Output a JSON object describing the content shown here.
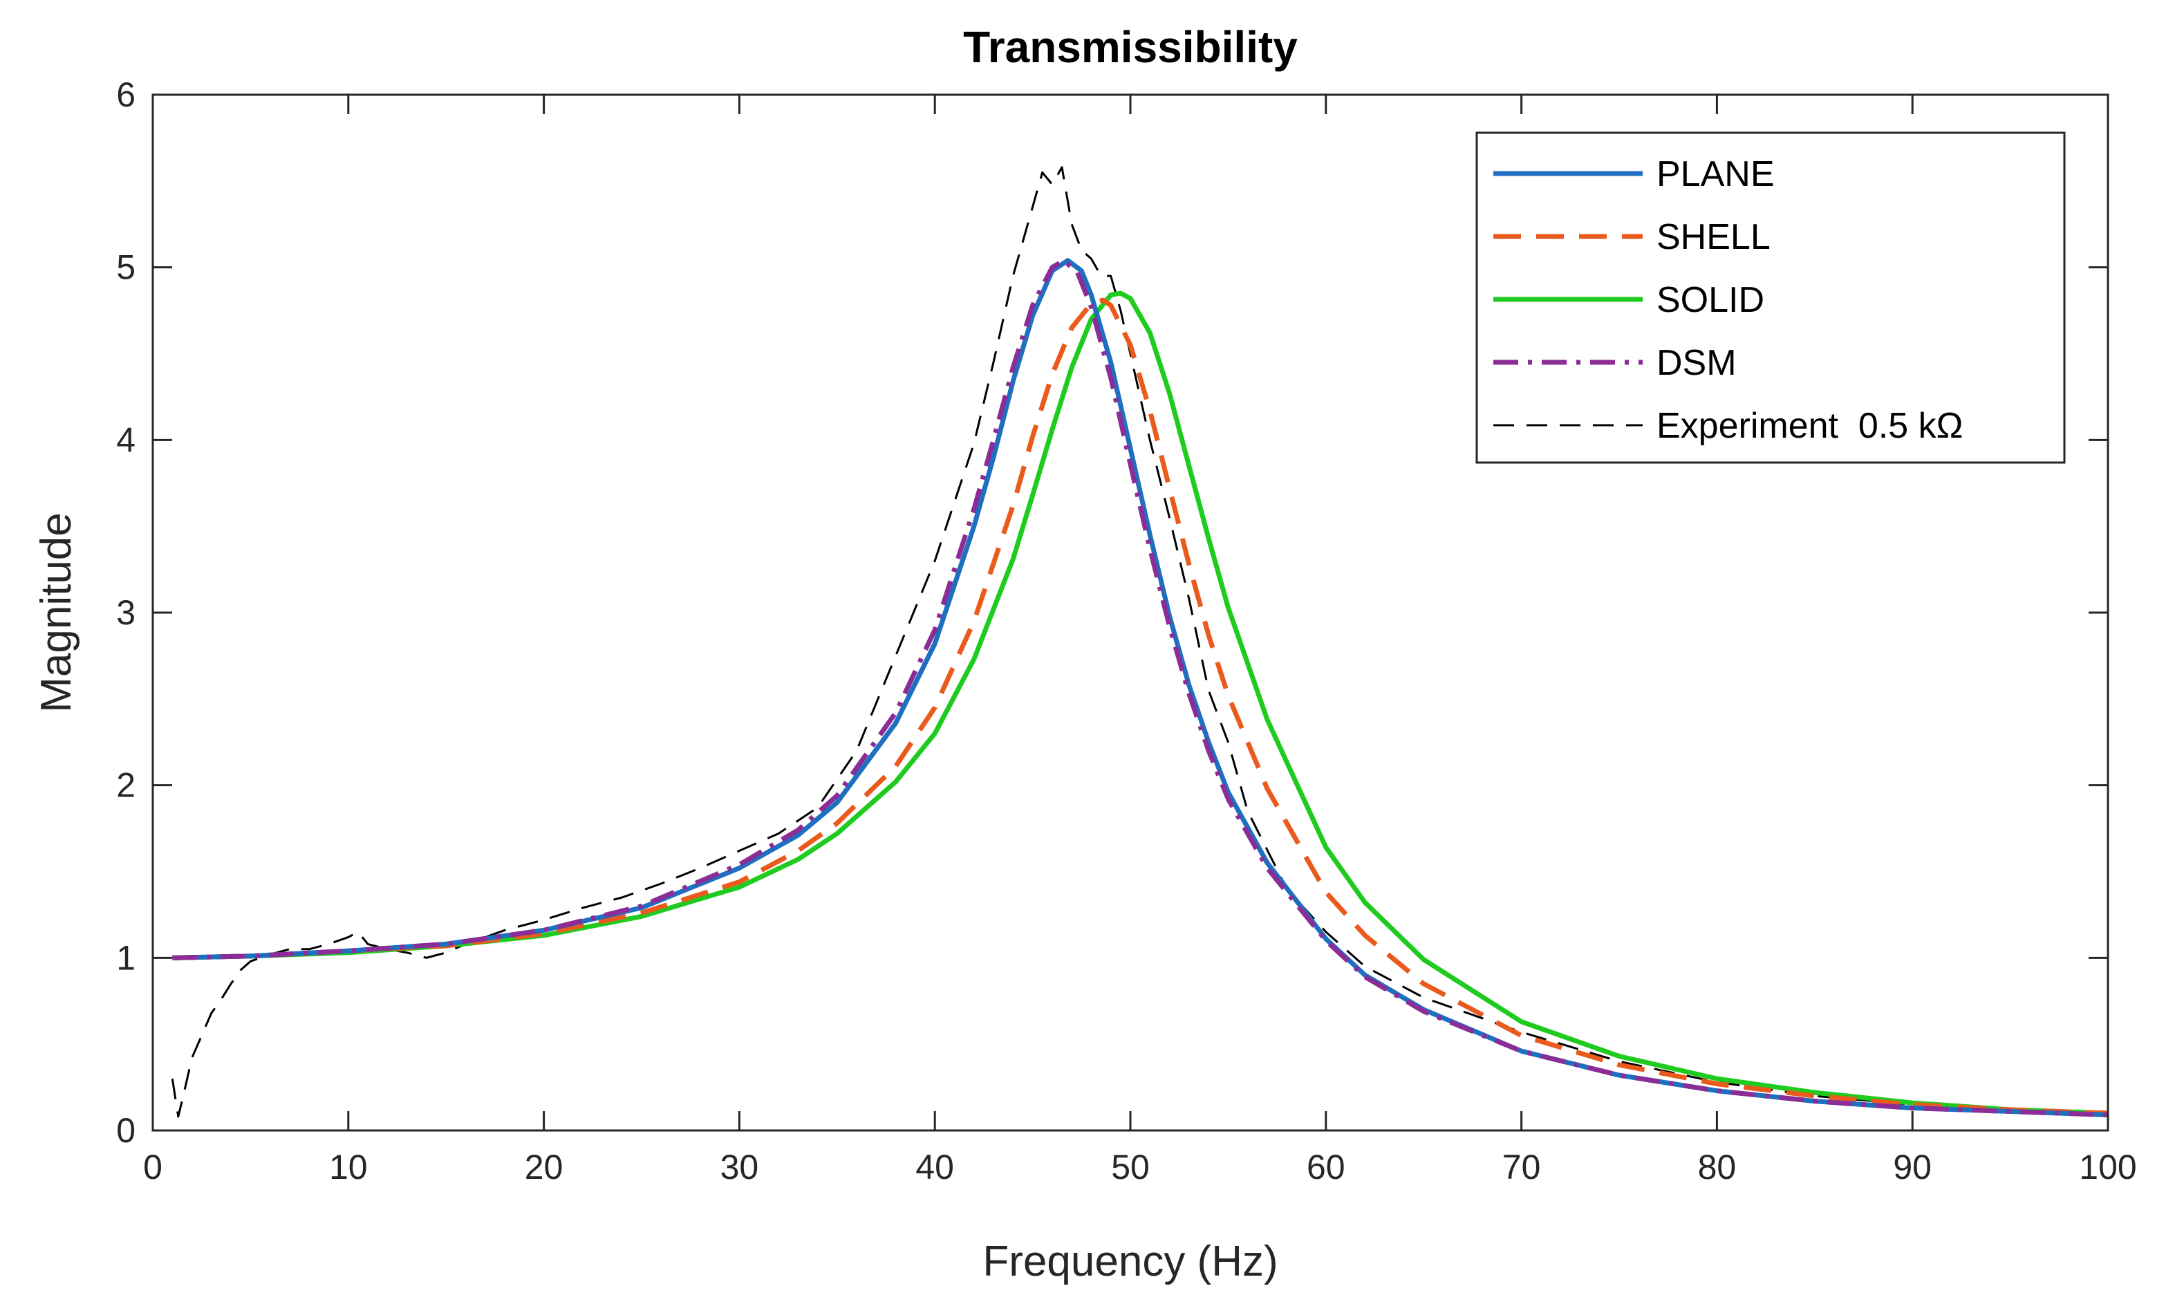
{
  "chart_data": {
    "type": "line",
    "title": "Transmissibility",
    "xlabel": "Frequency (Hz)",
    "ylabel": "Magnitude",
    "xlim": [
      0,
      100
    ],
    "ylim": [
      0,
      6
    ],
    "xticks": [
      0,
      10,
      20,
      30,
      40,
      50,
      60,
      70,
      80,
      90,
      100
    ],
    "yticks": [
      0,
      1,
      2,
      3,
      4,
      5,
      6
    ],
    "grid": false,
    "legend_position": "top-right",
    "series": [
      {
        "name": "PLANE",
        "color": "#1f6fc0",
        "style": "solid",
        "x": [
          1,
          5,
          10,
          15,
          20,
          25,
          30,
          33,
          35,
          38,
          40,
          42,
          43,
          44,
          45,
          46,
          46.8,
          47.5,
          48,
          49,
          50,
          51,
          52,
          53,
          54,
          55,
          57,
          60,
          62,
          65,
          70,
          75,
          80,
          85,
          90,
          95,
          100
        ],
        "y": [
          1.0,
          1.01,
          1.04,
          1.08,
          1.16,
          1.29,
          1.52,
          1.71,
          1.9,
          2.36,
          2.82,
          3.5,
          3.9,
          4.34,
          4.72,
          4.98,
          5.04,
          4.98,
          4.84,
          4.45,
          3.95,
          3.45,
          2.98,
          2.58,
          2.25,
          1.96,
          1.55,
          1.11,
          0.9,
          0.7,
          0.46,
          0.32,
          0.23,
          0.17,
          0.13,
          0.11,
          0.09
        ]
      },
      {
        "name": "SHELL",
        "color": "#ea5a1d",
        "style": "dashed",
        "x": [
          1,
          5,
          10,
          15,
          20,
          25,
          30,
          33,
          35,
          38,
          40,
          42,
          44,
          45,
          46,
          47,
          48,
          48.6,
          49,
          50,
          51,
          52,
          53,
          54,
          55,
          57,
          60,
          62,
          65,
          70,
          75,
          80,
          85,
          90,
          95,
          100
        ],
        "y": [
          1.0,
          1.01,
          1.04,
          1.07,
          1.14,
          1.26,
          1.44,
          1.62,
          1.78,
          2.11,
          2.45,
          2.95,
          3.62,
          4.02,
          4.38,
          4.65,
          4.79,
          4.81,
          4.78,
          4.55,
          4.17,
          3.72,
          3.28,
          2.87,
          2.52,
          1.98,
          1.38,
          1.13,
          0.85,
          0.55,
          0.38,
          0.27,
          0.2,
          0.15,
          0.12,
          0.1
        ]
      },
      {
        "name": "SOLID",
        "color": "#1ecb1e",
        "style": "solid",
        "x": [
          1,
          5,
          10,
          15,
          20,
          25,
          30,
          33,
          35,
          38,
          40,
          42,
          44,
          45,
          46,
          47,
          48,
          49,
          49.5,
          50,
          51,
          52,
          53,
          54,
          55,
          57,
          60,
          62,
          65,
          70,
          75,
          80,
          85,
          90,
          95,
          100
        ],
        "y": [
          1.0,
          1.01,
          1.03,
          1.07,
          1.13,
          1.24,
          1.41,
          1.57,
          1.72,
          2.02,
          2.3,
          2.73,
          3.31,
          3.68,
          4.06,
          4.42,
          4.7,
          4.84,
          4.85,
          4.82,
          4.62,
          4.27,
          3.85,
          3.43,
          3.03,
          2.38,
          1.64,
          1.32,
          0.99,
          0.63,
          0.43,
          0.3,
          0.22,
          0.16,
          0.12,
          0.1
        ]
      },
      {
        "name": "DSM",
        "color": "#8c2c97",
        "style": "dashdot",
        "x": [
          1,
          5,
          10,
          15,
          20,
          25,
          30,
          33,
          35,
          38,
          40,
          42,
          43,
          44,
          45,
          46,
          46.6,
          47.3,
          48,
          49,
          50,
          51,
          52,
          53,
          54,
          55,
          57,
          60,
          62,
          65,
          70,
          75,
          80,
          85,
          90,
          95,
          100
        ],
        "y": [
          1.0,
          1.01,
          1.04,
          1.08,
          1.16,
          1.3,
          1.54,
          1.74,
          1.94,
          2.42,
          2.9,
          3.6,
          4.0,
          4.42,
          4.78,
          5.0,
          5.04,
          4.97,
          4.77,
          4.36,
          3.86,
          3.37,
          2.92,
          2.53,
          2.2,
          1.92,
          1.52,
          1.1,
          0.89,
          0.69,
          0.46,
          0.32,
          0.23,
          0.17,
          0.13,
          0.11,
          0.09
        ]
      },
      {
        "name": "Experiment  0.5 kΩ",
        "color": "#000000",
        "style": "dashed-long",
        "x": [
          1.0,
          1.3,
          1.6,
          2,
          2.5,
          3,
          3.5,
          4,
          4.5,
          5,
          5.5,
          6,
          7,
          8,
          9,
          10,
          10.5,
          11,
          12,
          13,
          14,
          15,
          16,
          17,
          18,
          20,
          22,
          24,
          26,
          28,
          30,
          32,
          34,
          36,
          38,
          40,
          42,
          43,
          44,
          45,
          45.5,
          46,
          46.5,
          47,
          47.5,
          48,
          48.5,
          49,
          49.5,
          50,
          50.5,
          51,
          52,
          53,
          54,
          55,
          56,
          58,
          60,
          62,
          65,
          70,
          75,
          80,
          85,
          90,
          95,
          100
        ],
        "y": [
          0.3,
          0.08,
          0.22,
          0.42,
          0.55,
          0.68,
          0.76,
          0.85,
          0.93,
          0.98,
          1.0,
          1.02,
          1.05,
          1.05,
          1.08,
          1.12,
          1.15,
          1.08,
          1.05,
          1.03,
          1.0,
          1.03,
          1.08,
          1.12,
          1.16,
          1.22,
          1.29,
          1.35,
          1.43,
          1.52,
          1.62,
          1.72,
          1.87,
          2.2,
          2.75,
          3.3,
          3.98,
          4.45,
          4.95,
          5.35,
          5.55,
          5.48,
          5.58,
          5.25,
          5.1,
          5.05,
          4.95,
          4.95,
          4.75,
          4.5,
          4.25,
          4.0,
          3.55,
          3.08,
          2.55,
          2.25,
          1.85,
          1.4,
          1.15,
          0.95,
          0.77,
          0.57,
          0.4,
          0.28,
          0.2,
          0.15,
          0.12,
          0.1
        ]
      }
    ]
  }
}
